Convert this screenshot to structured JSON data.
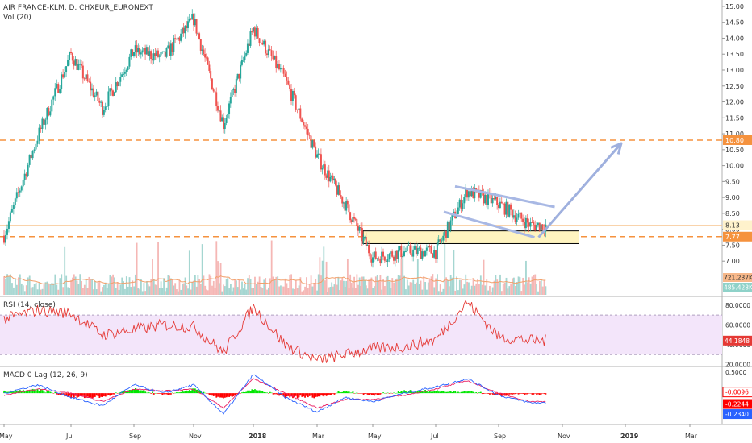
{
  "header": {
    "symbol_line": "AIR FRANCE-KLM, D, CHXEUR_EURONEXT",
    "volume_line": "Vol (20)"
  },
  "colors": {
    "up": "#26a69a",
    "down": "#ef5350",
    "vol_up": "#a5d6d1",
    "vol_down": "#f5b7b5",
    "level": "#f5923e",
    "zone_fill": "#fff4c0",
    "channel": "#a8b8e4",
    "arrow": "#9fb0de",
    "rsi_line": "#e53935",
    "rsi_band": "#f3e5fa",
    "macd_line": "#2962ff",
    "signal_line": "#e91e63",
    "hist_pos": "#00e600",
    "hist_neg": "#ff0000"
  },
  "chart_data": [
    {
      "type": "candlestick",
      "title": "AIR FRANCE-KLM, D, CHXEUR_EURONEXT",
      "y_axis": {
        "ticks": [
          "15.00",
          "14.50",
          "14.00",
          "13.50",
          "13.00",
          "12.50",
          "12.00",
          "11.50",
          "11.00",
          "10.50",
          "10.00",
          "9.50",
          "9.00",
          "8.50",
          "8.00",
          "7.50",
          "7.00"
        ],
        "ylim": [
          6.55,
          15.15
        ],
        "side": "right"
      },
      "x_axis": {
        "labels": [
          "May",
          "Jul",
          "Sep",
          "Nov",
          "2018",
          "Mar",
          "May",
          "Jul",
          "Sep",
          "Nov",
          "2019",
          "Mar"
        ]
      },
      "price_path_monthly": [
        {
          "month": "May 2017",
          "close": 7.8
        },
        {
          "month": "Jun 2017",
          "close": 10.9
        },
        {
          "month": "Jul 2017",
          "close": 13.5
        },
        {
          "month": "Aug 2017",
          "close": 11.8
        },
        {
          "month": "Sep 2017",
          "close": 13.6
        },
        {
          "month": "Oct 2017",
          "close": 13.4
        },
        {
          "month": "Nov 2017",
          "close": 14.6
        },
        {
          "month": "Dec 2017",
          "close": 11.3
        },
        {
          "month": "Jan 2018",
          "close": 14.3
        },
        {
          "month": "Feb 2018",
          "close": 12.7
        },
        {
          "month": "Mar 2018",
          "close": 10.3
        },
        {
          "month": "Apr 2018",
          "close": 8.8
        },
        {
          "month": "May 2018",
          "close": 7.1
        },
        {
          "month": "Jun 2018",
          "close": 7.3
        },
        {
          "month": "Jul 2018",
          "close": 7.3
        },
        {
          "month": "Aug 2018",
          "close": 9.2
        },
        {
          "month": "Sep 2018",
          "close": 8.8
        },
        {
          "month": "Oct 2018",
          "close": 8.13
        }
      ],
      "levels": [
        {
          "value": 10.8,
          "label": "10.80",
          "style": "dashed"
        },
        {
          "value": 7.77,
          "label": "7.77",
          "style": "dashed"
        },
        {
          "value": 8.13,
          "label": "8.13",
          "style": "last-price"
        }
      ],
      "support_zone": {
        "low": 7.55,
        "high": 7.95
      },
      "channel": {
        "upper": [
          {
            "date": "Aug 2018",
            "value": 9.35
          },
          {
            "date": "Oct 2018",
            "value": 8.7
          }
        ],
        "lower": [
          {
            "date": "Jul 2018",
            "value": 8.55
          },
          {
            "date": "Oct 2018",
            "value": 7.75
          }
        ]
      },
      "projection_arrow": {
        "from": {
          "date": "Oct 2018",
          "value": 7.75
        },
        "to": {
          "date": "Jan 2019",
          "value": 10.8
        }
      }
    },
    {
      "type": "bar",
      "title": "Vol (20)",
      "last_values": [
        "721.237K",
        "485.428K"
      ]
    },
    {
      "type": "line",
      "title": "RSI (14, close)",
      "y_axis": {
        "ticks": [
          "80.0000",
          "60.0000",
          "40.0000",
          "20.0000"
        ],
        "ylim": [
          18,
          88
        ]
      },
      "bands": [
        30,
        70
      ],
      "last_value": "44.1848",
      "values_monthly": [
        {
          "month": "May 2017",
          "value": 66
        },
        {
          "month": "Jun 2017",
          "value": 75
        },
        {
          "month": "Jul 2017",
          "value": 72
        },
        {
          "month": "Aug 2017",
          "value": 50
        },
        {
          "month": "Sep 2017",
          "value": 55
        },
        {
          "month": "Oct 2017",
          "value": 60
        },
        {
          "month": "Nov 2017",
          "value": 58
        },
        {
          "month": "Dec 2017",
          "value": 32
        },
        {
          "month": "Jan 2018",
          "value": 78
        },
        {
          "month": "Feb 2018",
          "value": 40
        },
        {
          "month": "Mar 2018",
          "value": 24
        },
        {
          "month": "Apr 2018",
          "value": 30
        },
        {
          "month": "May 2018",
          "value": 36
        },
        {
          "month": "Jun 2018",
          "value": 38
        },
        {
          "month": "Jul 2018",
          "value": 45
        },
        {
          "month": "Aug 2018",
          "value": 83
        },
        {
          "month": "Sep 2018",
          "value": 48
        },
        {
          "month": "Oct 2018",
          "value": 44.18
        }
      ]
    },
    {
      "type": "line",
      "title": "MACD 0 Lag (12, 26, 9)",
      "y_axis": {
        "ticks": [
          "0.5000",
          "0.0000",
          "-0.5000"
        ],
        "ylim": [
          -0.75,
          0.62
        ]
      },
      "last_values": [
        "-0.0096",
        "-0.2244",
        "-0.2340"
      ],
      "series": [
        {
          "name": "MACD",
          "values_monthly": [
            {
              "month": "May 2017",
              "value": 0.0
            },
            {
              "month": "Jun 2017",
              "value": 0.2
            },
            {
              "month": "Jul 2017",
              "value": -0.1
            },
            {
              "month": "Aug 2017",
              "value": -0.3
            },
            {
              "month": "Sep 2017",
              "value": 0.2
            },
            {
              "month": "Oct 2017",
              "value": 0.0
            },
            {
              "month": "Nov 2017",
              "value": 0.2
            },
            {
              "month": "Dec 2017",
              "value": -0.5
            },
            {
              "month": "Jan 2018",
              "value": 0.45
            },
            {
              "month": "Feb 2018",
              "value": -0.1
            },
            {
              "month": "Mar 2018",
              "value": -0.45
            },
            {
              "month": "Apr 2018",
              "value": -0.1
            },
            {
              "month": "May 2018",
              "value": -0.2
            },
            {
              "month": "Jun 2018",
              "value": 0.0
            },
            {
              "month": "Jul 2018",
              "value": 0.15
            },
            {
              "month": "Aug 2018",
              "value": 0.35
            },
            {
              "month": "Sep 2018",
              "value": -0.05
            },
            {
              "month": "Oct 2018",
              "value": -0.23
            }
          ]
        },
        {
          "name": "Signal",
          "values_monthly": [
            {
              "month": "May 2017",
              "value": -0.05
            },
            {
              "month": "Jun 2017",
              "value": 0.1
            },
            {
              "month": "Jul 2017",
              "value": 0.0
            },
            {
              "month": "Aug 2017",
              "value": -0.2
            },
            {
              "month": "Sep 2017",
              "value": 0.1
            },
            {
              "month": "Oct 2017",
              "value": 0.05
            },
            {
              "month": "Nov 2017",
              "value": 0.1
            },
            {
              "month": "Dec 2017",
              "value": -0.35
            },
            {
              "month": "Jan 2018",
              "value": 0.35
            },
            {
              "month": "Feb 2018",
              "value": 0.0
            },
            {
              "month": "Mar 2018",
              "value": -0.35
            },
            {
              "month": "Apr 2018",
              "value": -0.15
            },
            {
              "month": "May 2018",
              "value": -0.15
            },
            {
              "month": "Jun 2018",
              "value": -0.05
            },
            {
              "month": "Jul 2018",
              "value": 0.1
            },
            {
              "month": "Aug 2018",
              "value": 0.3
            },
            {
              "month": "Sep 2018",
              "value": 0.0
            },
            {
              "month": "Oct 2018",
              "value": -0.2
            }
          ]
        }
      ]
    }
  ]
}
